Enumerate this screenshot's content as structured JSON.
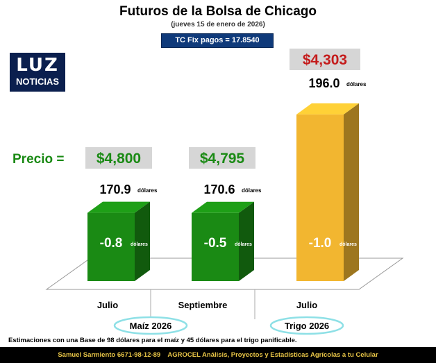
{
  "header": {
    "title": "Futuros de la Bolsa de Chicago",
    "subtitle": "(jueves 15 de enero de 2026)",
    "tc_fix": "TC Fix pagos = 17.8540"
  },
  "logo": {
    "top": "LUZ",
    "bottom": "NOTICIAS"
  },
  "chart_data": {
    "type": "bar",
    "categories": [
      "Julio",
      "Septiembre",
      "Julio"
    ],
    "groups": [
      "Maíz 2026",
      "Trigo 2026"
    ],
    "price_label": "Precio =",
    "prices": [
      "$4,800",
      "$4,795",
      "$4,303"
    ],
    "values": [
      170.9,
      170.6,
      196.0
    ],
    "value_labels": [
      "170.9",
      "170.6",
      "196.0"
    ],
    "changes": [
      "-0.8",
      "-0.5",
      "-1.0"
    ],
    "unit": "dólares",
    "colors": [
      "#1a8a14",
      "#1a8a14",
      "#f2b630"
    ],
    "ylim": [
      0,
      200
    ]
  },
  "footer": {
    "note": "Estimaciones con una Base de 98 dólares para el maíz y 45 dólares para el trigo panificable.",
    "credit_name": "Samuel Sarmiento",
    "credit_phone": "6671-98-12-89",
    "credit_org": "AGROCEL",
    "credit_desc": "Análisis, Proyectos y Estadísticas Agrícolas a tu Celular"
  }
}
